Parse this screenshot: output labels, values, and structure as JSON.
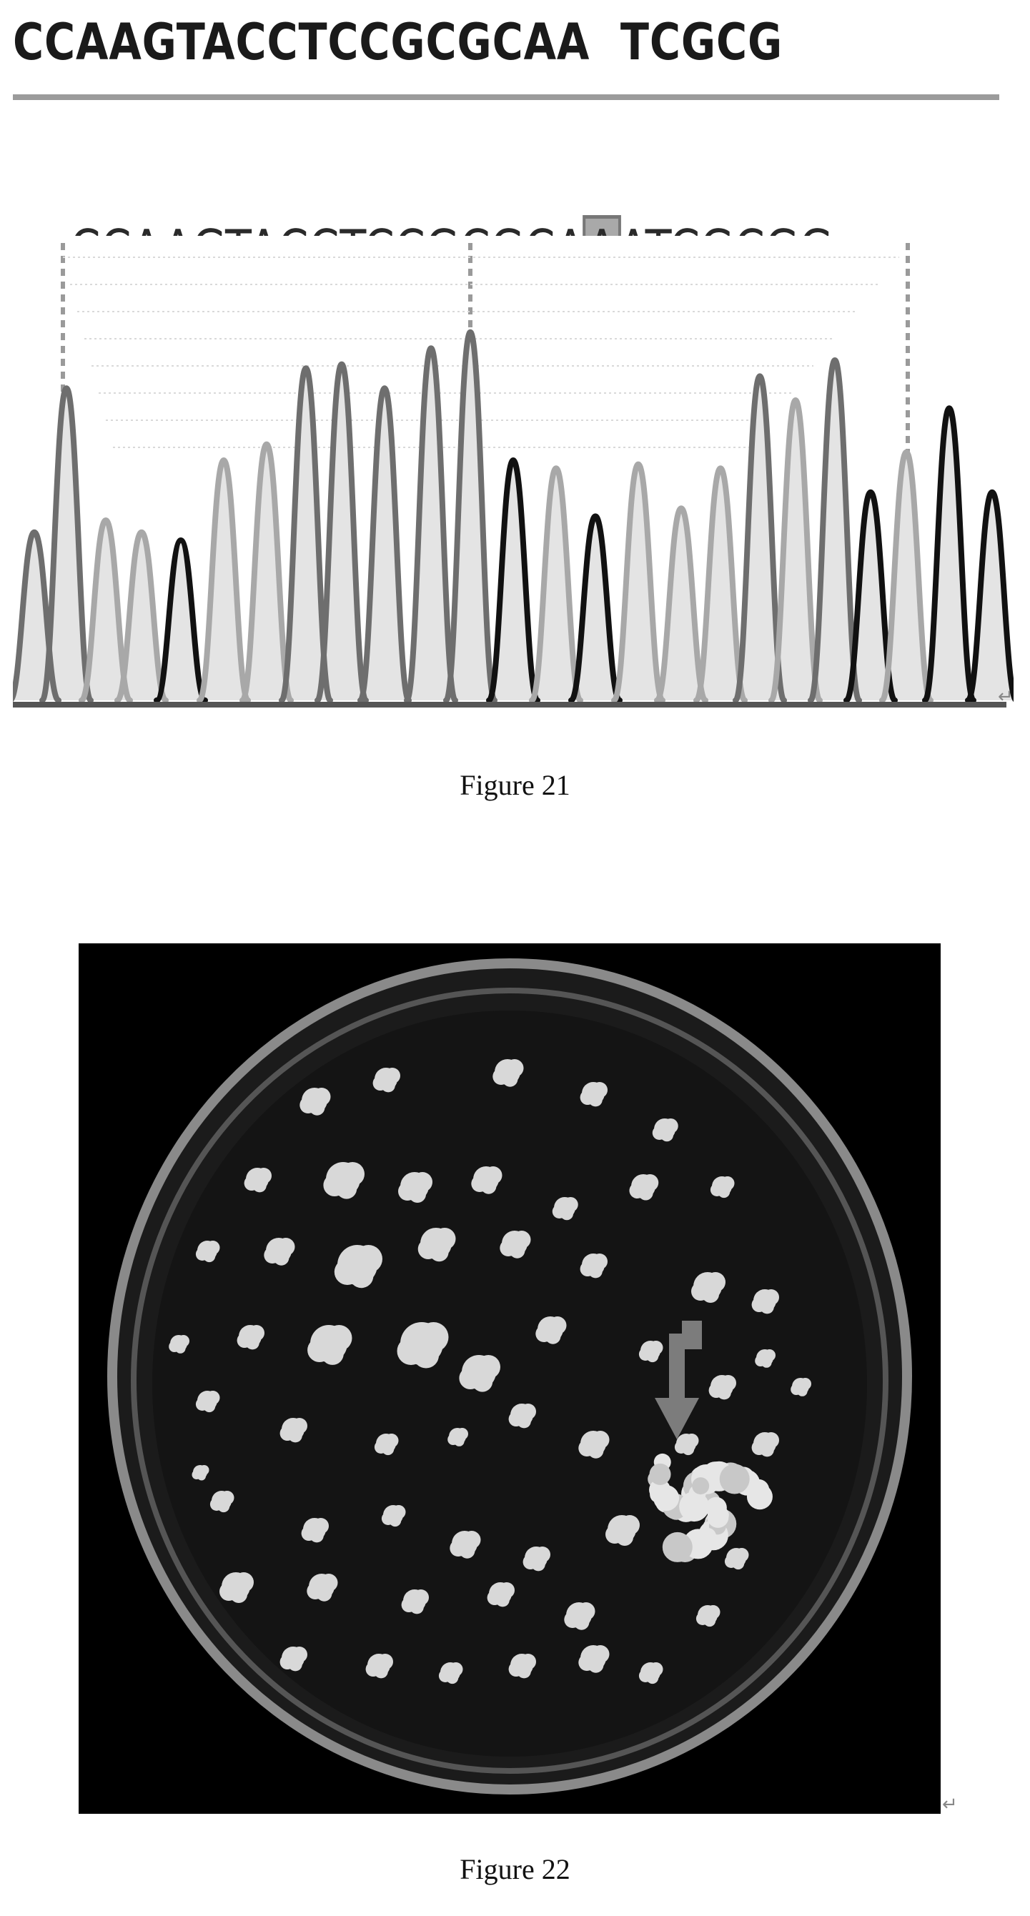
{
  "figure21": {
    "reference_sequence": "CCAAGTACCTCCGCGCAA  TCGCG",
    "read_sequence": "CCAAGTACCTCCGCGCAAATCGCGG",
    "inserted_base": "A",
    "caption": "Figure 21"
  },
  "figure22": {
    "caption": "Figure 22"
  },
  "return_mark": "↵",
  "colors": {
    "text": "#1a1a1a",
    "divider": "#9b9b9b",
    "highlight_fill": "#a9a9a9",
    "trace_dark": "#111111",
    "trace_mid": "#6e6e6e",
    "trace_light": "#a8a8a8",
    "background": "#000000"
  }
}
